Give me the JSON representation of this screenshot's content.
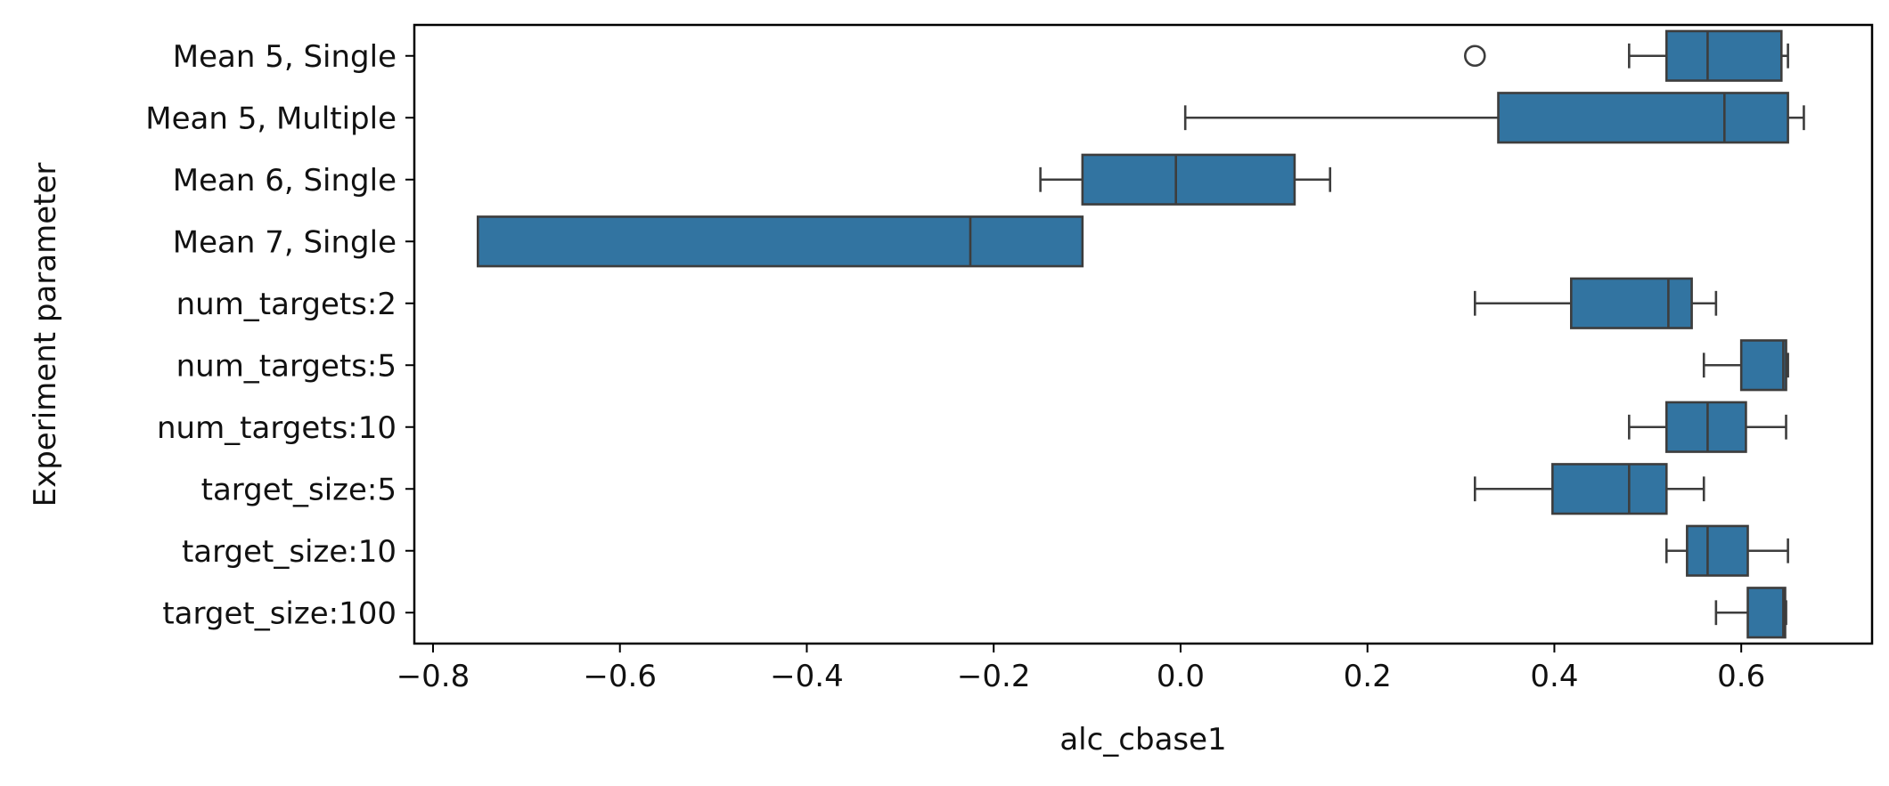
{
  "chart_data": {
    "type": "boxplot",
    "orientation": "horizontal",
    "xlabel": "alc_cbase1",
    "ylabel": "Experiment parameter",
    "xlim": [
      -0.82,
      0.74
    ],
    "xticks": [
      -0.8,
      -0.6,
      -0.4,
      -0.2,
      0.0,
      0.2,
      0.4,
      0.6
    ],
    "xtick_labels": [
      "−0.8",
      "−0.6",
      "−0.4",
      "−0.2",
      "0.0",
      "0.2",
      "0.4",
      "0.6"
    ],
    "grid": false,
    "box_color": "#3274a1",
    "line_color": "#3d3d3d",
    "categories": [
      "Mean 5, Single",
      "Mean 5, Multiple",
      "Mean 6, Single",
      "Mean 7, Single",
      "num_targets:2",
      "num_targets:5",
      "num_targets:10",
      "target_size:5",
      "target_size:10",
      "target_size:100"
    ],
    "boxes": [
      {
        "whislo": 0.48,
        "q1": 0.52,
        "med": 0.564,
        "q3": 0.643,
        "whishi": 0.65,
        "fliers": [
          0.315
        ]
      },
      {
        "whislo": 0.005,
        "q1": 0.34,
        "med": 0.582,
        "q3": 0.65,
        "whishi": 0.667,
        "fliers": []
      },
      {
        "whislo": -0.15,
        "q1": -0.105,
        "med": -0.005,
        "q3": 0.122,
        "whishi": 0.16,
        "fliers": []
      },
      {
        "whislo": -0.752,
        "q1": -0.752,
        "med": -0.225,
        "q3": -0.105,
        "whishi": -0.105,
        "fliers": []
      },
      {
        "whislo": 0.315,
        "q1": 0.418,
        "med": 0.522,
        "q3": 0.547,
        "whishi": 0.573,
        "fliers": []
      },
      {
        "whislo": 0.56,
        "q1": 0.6,
        "med": 0.645,
        "q3": 0.648,
        "whishi": 0.65,
        "fliers": []
      },
      {
        "whislo": 0.48,
        "q1": 0.52,
        "med": 0.564,
        "q3": 0.605,
        "whishi": 0.648,
        "fliers": []
      },
      {
        "whislo": 0.315,
        "q1": 0.398,
        "med": 0.48,
        "q3": 0.52,
        "whishi": 0.56,
        "fliers": []
      },
      {
        "whislo": 0.52,
        "q1": 0.542,
        "med": 0.564,
        "q3": 0.607,
        "whishi": 0.65,
        "fliers": []
      },
      {
        "whislo": 0.573,
        "q1": 0.607,
        "med": 0.645,
        "q3": 0.647,
        "whishi": 0.648,
        "fliers": []
      }
    ]
  }
}
